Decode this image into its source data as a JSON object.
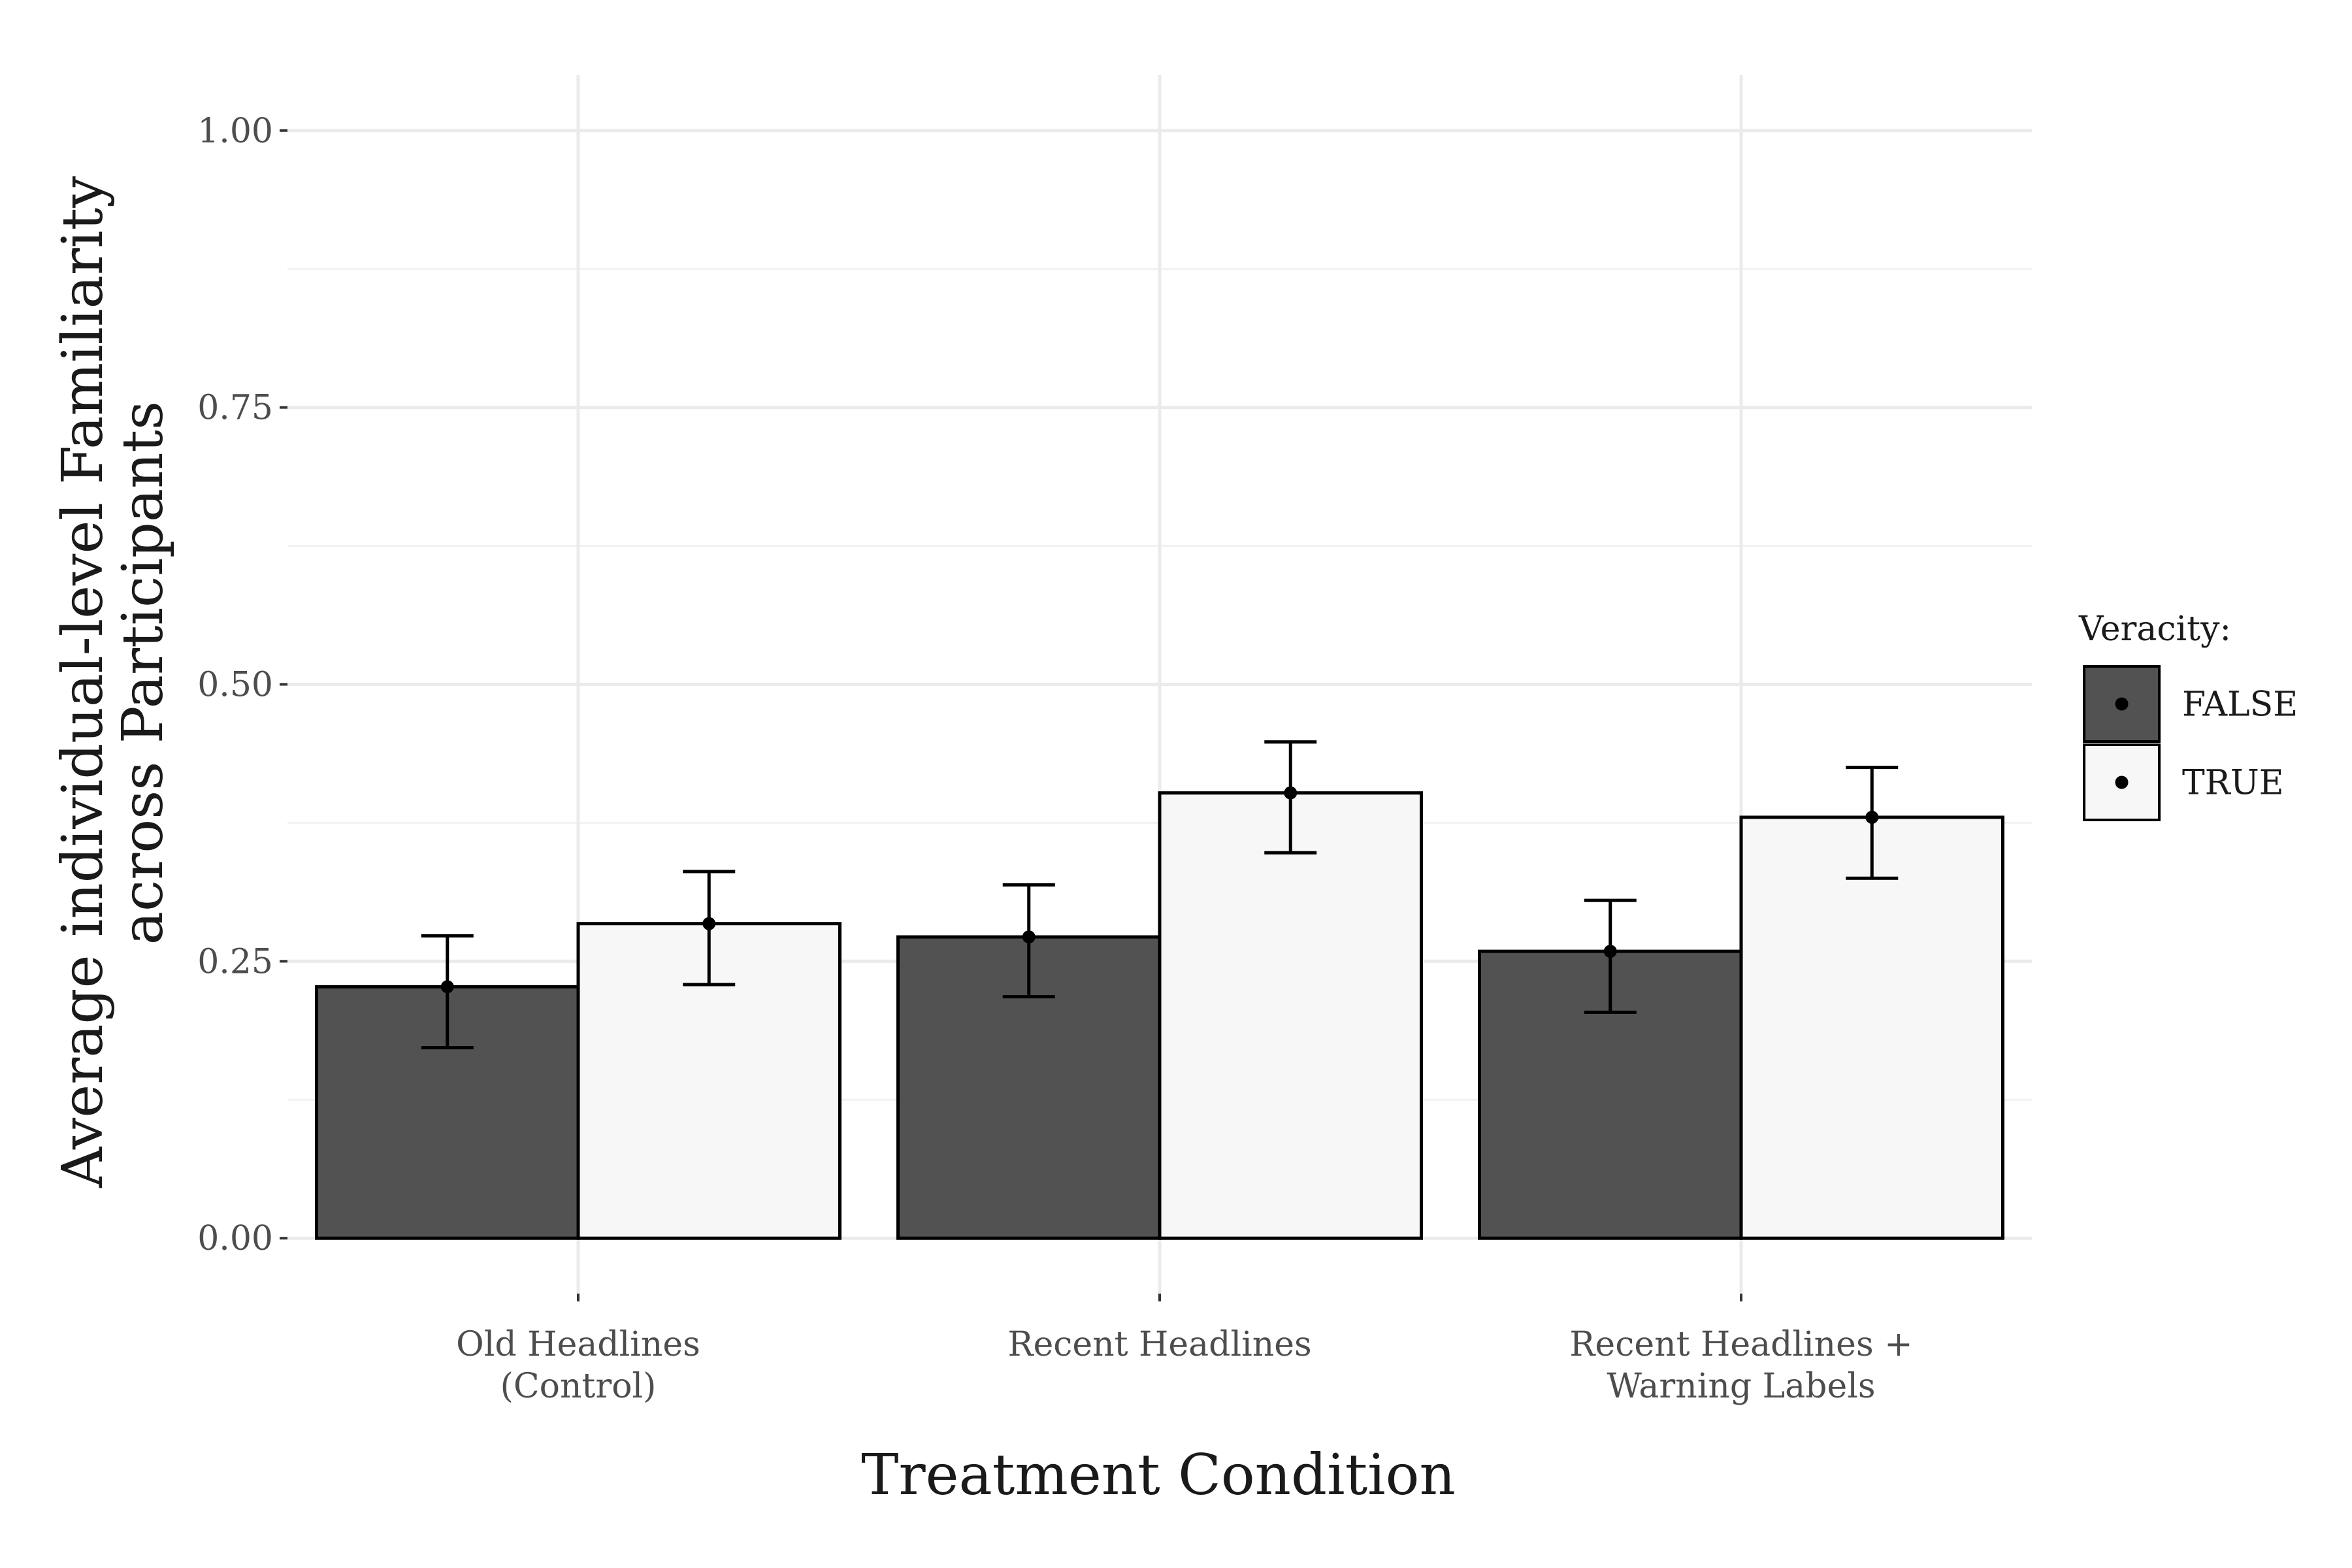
{
  "chart_data": {
    "type": "bar",
    "title": "",
    "xlabel": "Treatment Condition",
    "ylabel": [
      "Average individual-level Familiarity",
      "across Participants"
    ],
    "categories": [
      [
        "Old Headlines",
        "(Control)"
      ],
      [
        "Recent Headlines"
      ],
      [
        "Recent Headlines +",
        "Warning Labels"
      ]
    ],
    "series": [
      {
        "name": "FALSE",
        "color": "#525252",
        "values": [
          0.227,
          0.272,
          0.259
        ],
        "err_low": [
          0.172,
          0.218,
          0.204
        ],
        "err_high": [
          0.273,
          0.319,
          0.305
        ]
      },
      {
        "name": "TRUE",
        "color": "#f7f7f7",
        "values": [
          0.284,
          0.402,
          0.38
        ],
        "err_low": [
          0.229,
          0.348,
          0.325
        ],
        "err_high": [
          0.331,
          0.448,
          0.425
        ]
      }
    ],
    "ylim": [
      0,
      1.0
    ],
    "yticks": [
      "0.00",
      "0.25",
      "0.50",
      "0.75",
      "1.00"
    ],
    "ytick_values": [
      0,
      0.25,
      0.5,
      0.75,
      1.0
    ],
    "grid": true,
    "legend": {
      "title": "Veracity:",
      "position": "right"
    }
  }
}
